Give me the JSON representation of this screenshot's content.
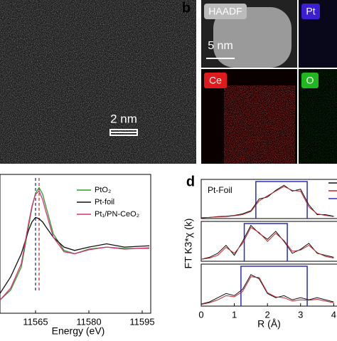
{
  "figure": {
    "panel_labels": [
      "b",
      "d"
    ],
    "scale_bars": [
      "2 nm",
      "5 nm"
    ],
    "map_labels": [
      "HAADF",
      "Pt",
      "Ce",
      "O"
    ],
    "d_ylabel": "FT K3*χ (k)",
    "d_sample": "Pt-Foil"
  },
  "chart_data": [
    {
      "type": "line",
      "xlabel": "Energy (eV)",
      "xlim": [
        11555,
        11597
      ],
      "ylim": [
        0,
        2.1
      ],
      "xticks": [
        11565,
        11580,
        11595
      ],
      "x": [
        11555,
        11558,
        11561,
        11563,
        11564,
        11565,
        11566,
        11567,
        11568,
        11570,
        11573,
        11576,
        11580,
        11585,
        11590,
        11597
      ],
      "series": [
        {
          "name": "PtO₂",
          "color": "#2e9e2e",
          "values": [
            0.2,
            0.35,
            0.7,
            1.3,
            1.6,
            1.82,
            1.9,
            1.8,
            1.6,
            1.2,
            0.95,
            0.9,
            0.97,
            1.0,
            0.98,
            0.98
          ]
        },
        {
          "name": "Pt-foil",
          "color": "#111111",
          "values": [
            0.3,
            0.55,
            0.9,
            1.25,
            1.38,
            1.45,
            1.43,
            1.38,
            1.3,
            1.15,
            1.0,
            0.95,
            1.0,
            1.05,
            1.0,
            1.02
          ]
        },
        {
          "name": "Pt₁/PN-CeO₂",
          "color": "#d6337a",
          "values": [
            0.2,
            0.38,
            0.75,
            1.35,
            1.62,
            1.8,
            1.85,
            1.72,
            1.52,
            1.15,
            0.93,
            0.9,
            0.96,
            1.0,
            0.97,
            0.99
          ]
        }
      ],
      "reference_lines": [
        {
          "x": 11565,
          "color": "#1a237e"
        },
        {
          "x": 11566,
          "color": "#c0262b"
        }
      ]
    },
    {
      "type": "line",
      "xlim": [
        0,
        4.1
      ],
      "ylim": [
        0,
        1
      ],
      "window": [
        1.65,
        3.2
      ],
      "window_color": "#2b2bc0",
      "x": [
        0,
        0.25,
        0.5,
        0.75,
        1,
        1.25,
        1.5,
        1.75,
        2,
        2.25,
        2.5,
        2.75,
        3,
        3.25,
        3.5,
        3.75,
        4
      ],
      "series": [
        {
          "color": "#111111",
          "values": [
            0.02,
            0.03,
            0.05,
            0.06,
            0.08,
            0.12,
            0.2,
            0.5,
            0.55,
            0.72,
            0.85,
            0.7,
            0.75,
            0.35,
            0.1,
            0.1,
            0.06
          ]
        },
        {
          "color": "#c0262b",
          "values": [
            0.02,
            0.03,
            0.04,
            0.05,
            0.07,
            0.1,
            0.18,
            0.45,
            0.58,
            0.7,
            0.82,
            0.72,
            0.7,
            0.3,
            0.12,
            0.08,
            0.05
          ]
        }
      ]
    },
    {
      "type": "line",
      "xlim": [
        0,
        4.1
      ],
      "ylim": [
        0,
        1
      ],
      "window": [
        1.3,
        2.6
      ],
      "window_color": "#2b2bc0",
      "x": [
        0,
        0.25,
        0.5,
        0.75,
        1,
        1.25,
        1.5,
        1.75,
        2,
        2.25,
        2.5,
        2.75,
        3,
        3.25,
        3.5,
        3.75,
        4
      ],
      "series": [
        {
          "color": "#111111",
          "values": [
            0.05,
            0.1,
            0.2,
            0.4,
            0.15,
            0.5,
            0.9,
            0.7,
            0.55,
            0.75,
            0.5,
            0.2,
            0.3,
            0.45,
            0.2,
            0.15,
            0.1
          ]
        },
        {
          "color": "#c0262b",
          "values": [
            0.05,
            0.08,
            0.15,
            0.35,
            0.2,
            0.45,
            0.85,
            0.72,
            0.5,
            0.7,
            0.52,
            0.25,
            0.28,
            0.4,
            0.22,
            0.12,
            0.08
          ]
        }
      ]
    },
    {
      "type": "line",
      "xlim": [
        0,
        4.1
      ],
      "ylim": [
        0,
        1
      ],
      "window": [
        1.2,
        3.2
      ],
      "window_color": "#2b2bc0",
      "xlabel": "R (Å)",
      "xticks": [
        0,
        1,
        2,
        3,
        4
      ],
      "x": [
        0,
        0.25,
        0.5,
        0.75,
        1,
        1.25,
        1.5,
        1.75,
        2,
        2.25,
        2.5,
        2.75,
        3,
        3.25,
        3.5,
        3.75,
        4
      ],
      "series": [
        {
          "color": "#111111",
          "values": [
            0.05,
            0.1,
            0.2,
            0.3,
            0.25,
            0.4,
            0.75,
            0.65,
            0.3,
            0.2,
            0.25,
            0.15,
            0.2,
            0.15,
            0.2,
            0.15,
            0.1
          ]
        },
        {
          "color": "#c0262b",
          "values": [
            0.04,
            0.08,
            0.15,
            0.25,
            0.22,
            0.35,
            0.7,
            0.68,
            0.32,
            0.22,
            0.2,
            0.12,
            0.15,
            0.14,
            0.16,
            0.12,
            0.08
          ]
        }
      ]
    }
  ]
}
